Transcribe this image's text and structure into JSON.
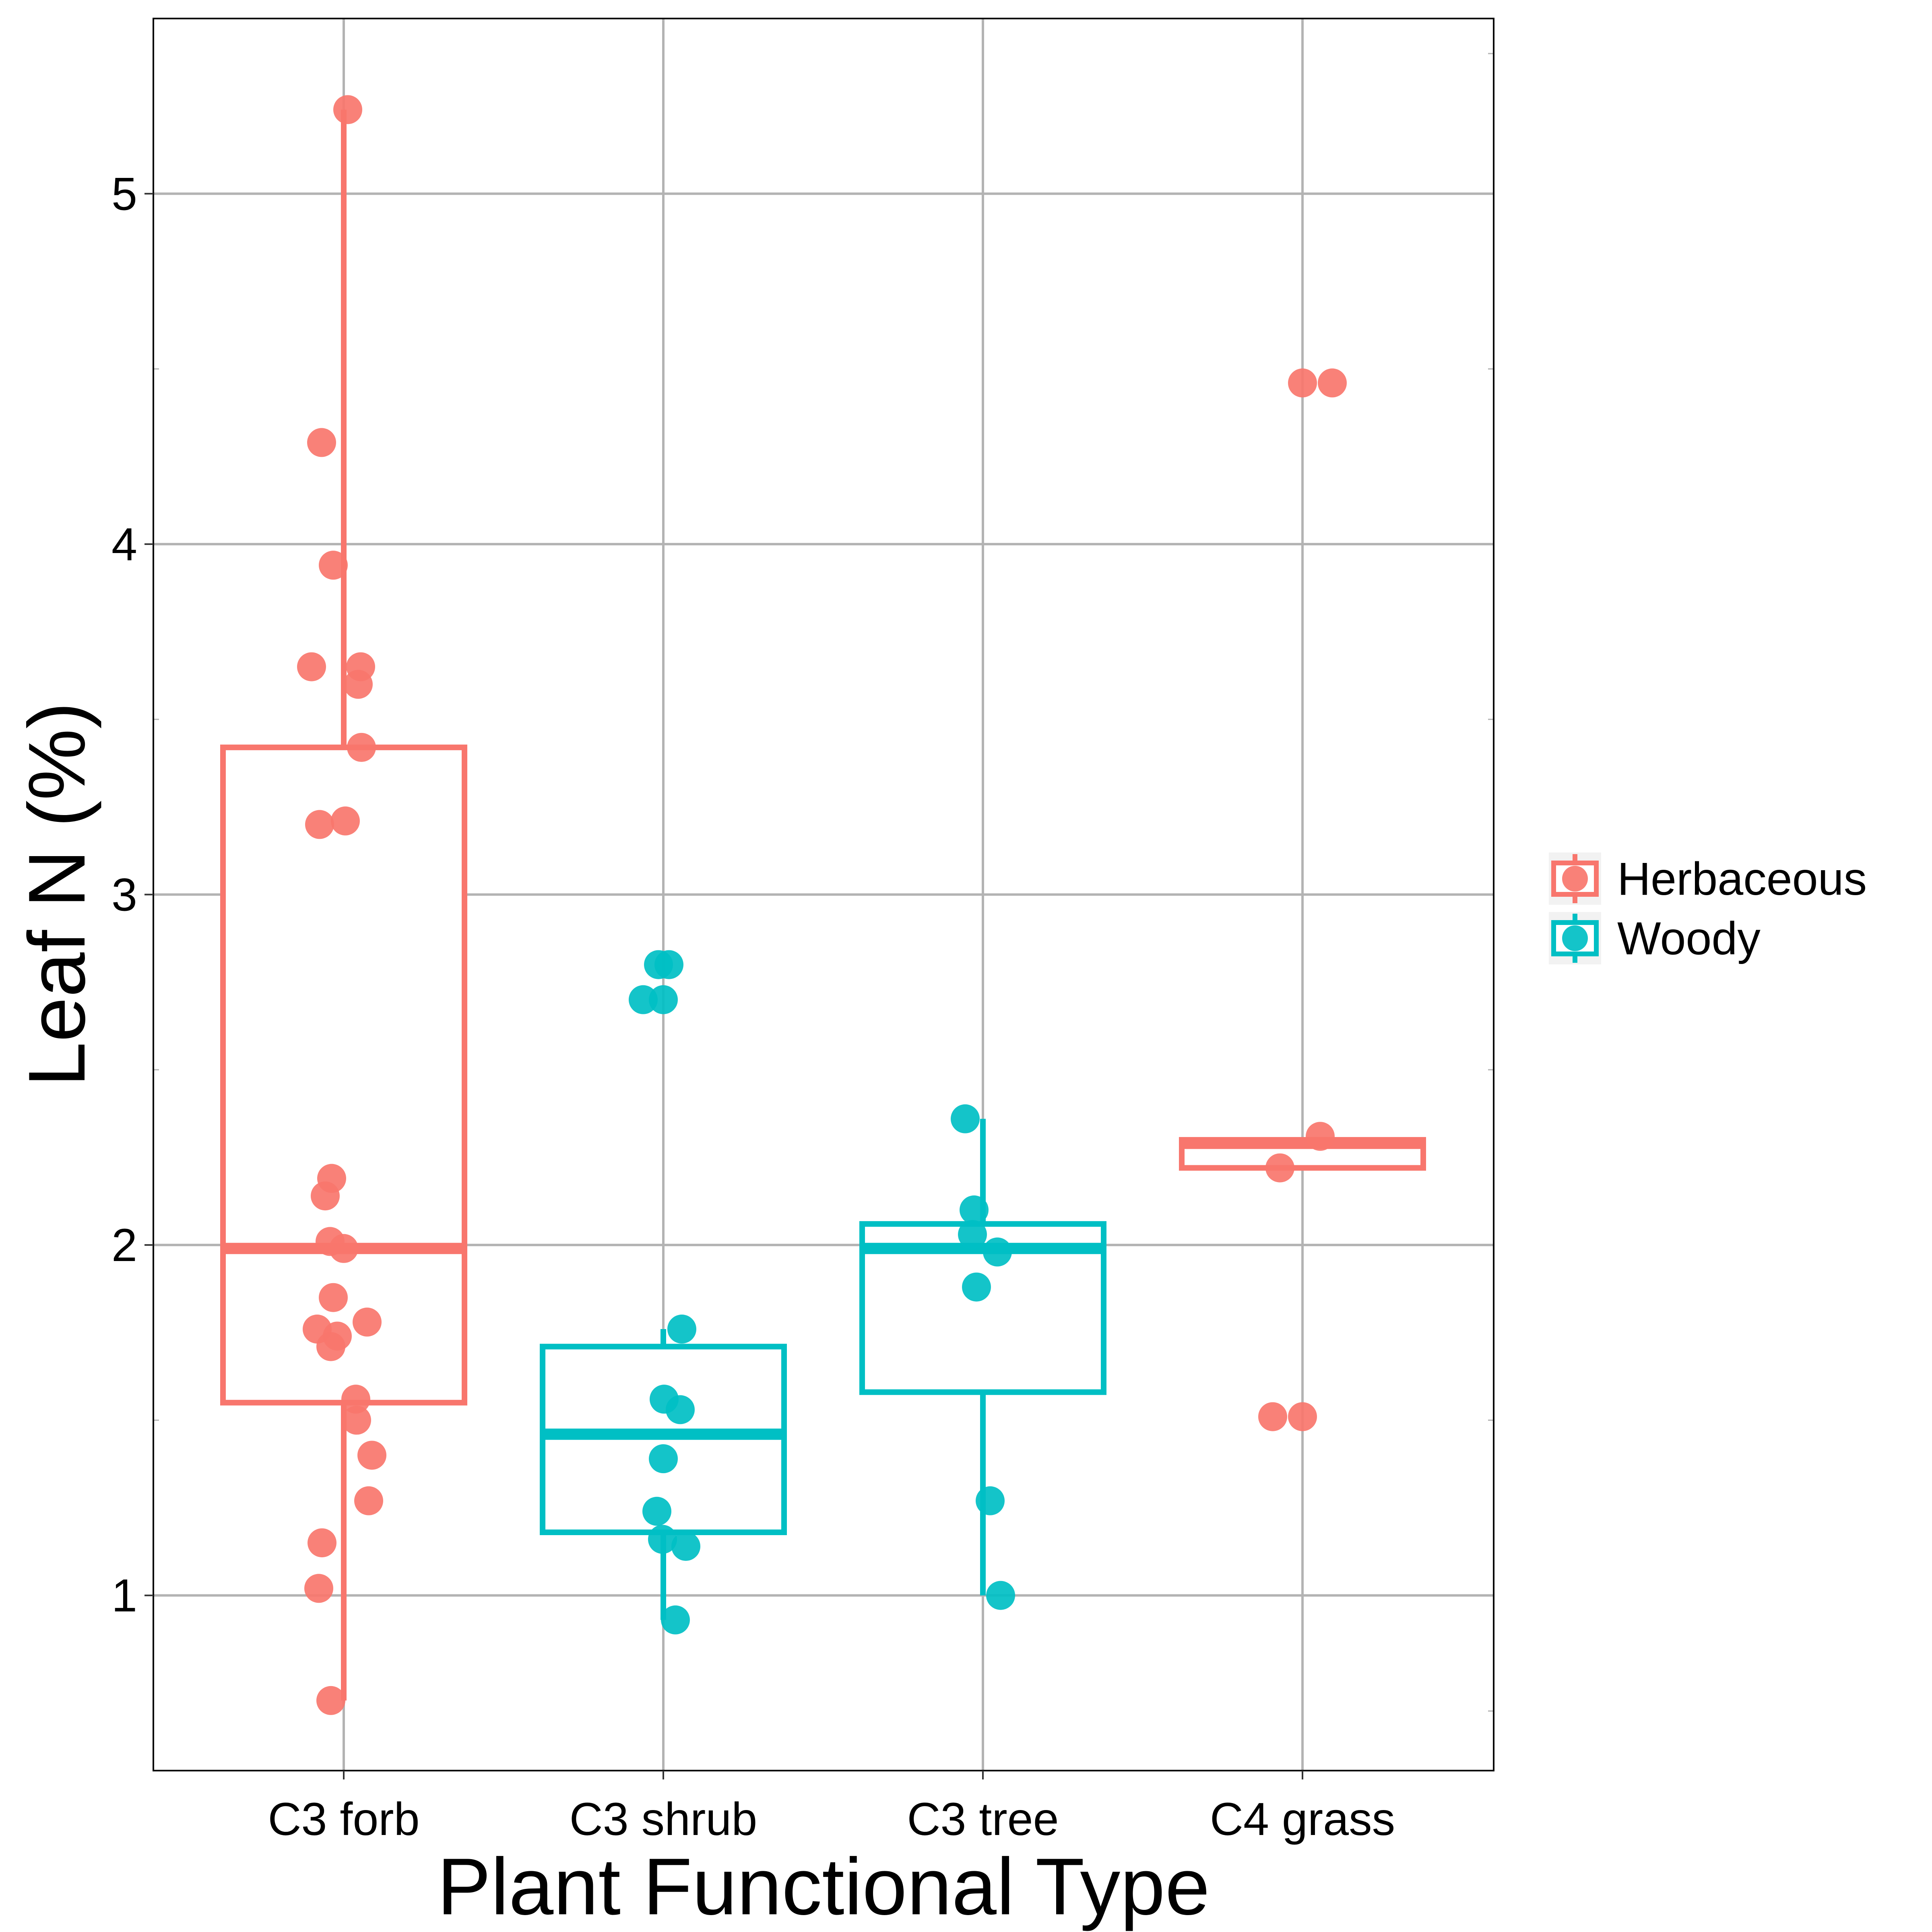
{
  "chart_data": {
    "type": "box",
    "title": "",
    "xlabel": "Plant Functional Type",
    "ylabel": "Leaf N (%)",
    "ylim": [
      0.5,
      5.5
    ],
    "yticks": [
      1,
      2,
      3,
      4,
      5
    ],
    "grid": true,
    "legend_position": "right",
    "categories": [
      "C3 forb",
      "C3 shrub",
      "C3 tree",
      "C4 grass"
    ],
    "legend": [
      {
        "name": "Herbaceous",
        "color": "#F8766D"
      },
      {
        "name": "Woody",
        "color": "#00BFC4"
      }
    ],
    "boxes": [
      {
        "category": "C3 forb",
        "group": "Herbaceous",
        "whisker_low": 0.7,
        "q1": 1.55,
        "median": 1.99,
        "q3": 3.42,
        "whisker_high": 5.24
      },
      {
        "category": "C3 shrub",
        "group": "Woody",
        "whisker_low": 0.93,
        "q1": 1.18,
        "median": 1.46,
        "q3": 1.71,
        "whisker_high": 1.76
      },
      {
        "category": "C3 tree",
        "group": "Woody",
        "whisker_low": 1.0,
        "q1": 1.58,
        "median": 1.99,
        "q3": 2.06,
        "whisker_high": 2.36
      },
      {
        "category": "C4 grass",
        "group": "Herbaceous",
        "whisker_low": 2.22,
        "q1": 2.22,
        "median": 2.29,
        "q3": 2.3,
        "whisker_high": 2.3
      }
    ],
    "points": [
      {
        "category": "C3 forb",
        "group": "Herbaceous",
        "values": [
          5.24,
          4.29,
          3.94,
          3.65,
          3.65,
          3.6,
          3.42,
          3.2,
          3.21,
          2.19,
          2.14,
          2.01,
          1.99,
          1.85,
          1.76,
          1.74,
          1.71,
          1.78,
          1.56,
          1.5,
          1.4,
          1.27,
          1.15,
          1.02,
          0.7
        ]
      },
      {
        "category": "C3 shrub",
        "group": "Woody",
        "values": [
          2.8,
          2.8,
          2.7,
          2.7,
          1.76,
          1.56,
          1.53,
          1.39,
          1.24,
          1.16,
          1.14,
          0.93
        ]
      },
      {
        "category": "C3 tree",
        "group": "Woody",
        "values": [
          2.36,
          2.1,
          2.03,
          1.98,
          1.88,
          1.27,
          1.0
        ]
      },
      {
        "category": "C4 grass",
        "group": "Herbaceous",
        "values": [
          4.46,
          4.46,
          2.31,
          2.22,
          1.51,
          1.51
        ]
      }
    ]
  }
}
